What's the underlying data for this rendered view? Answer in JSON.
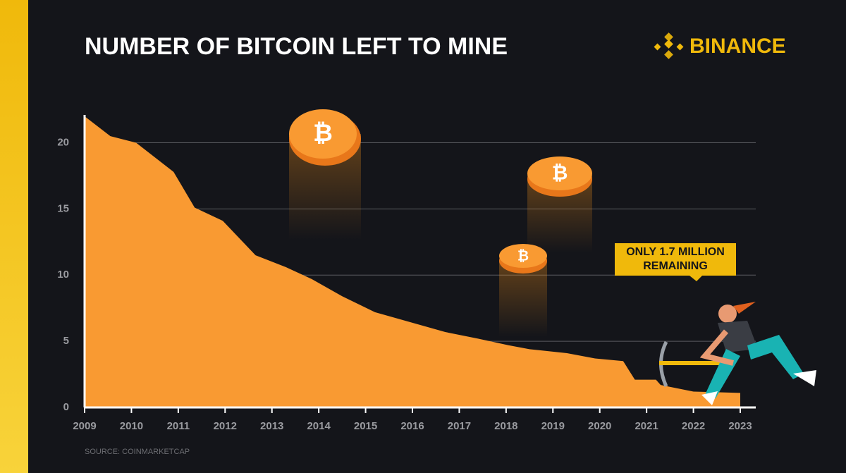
{
  "chart_data": {
    "type": "area",
    "title": "NUMBER OF BITCOIN LEFT TO MINE",
    "brand": "BINANCE",
    "source": "SOURCE: COINMARKETCAP",
    "annotation": [
      "ONLY 1.7 MILLION",
      "REMAINING"
    ],
    "x": [
      2009,
      2009.55,
      2010.1,
      2010.9,
      2011.35,
      2011.95,
      2012.65,
      2013.3,
      2013.85,
      2014.5,
      2015.2,
      2015.9,
      2016.7,
      2017.4,
      2018.05,
      2018.5,
      2019.3,
      2019.9,
      2020.5,
      2020.75,
      2021.2,
      2021.3,
      2022,
      2023
    ],
    "values": [
      22,
      20.5,
      20,
      17.8,
      15.1,
      14.1,
      11.5,
      10.6,
      9.7,
      8.4,
      7.2,
      6.5,
      5.7,
      5.2,
      4.7,
      4.4,
      4.1,
      3.7,
      3.5,
      2.1,
      2.1,
      1.7,
      1.2,
      1.1
    ],
    "color": "#f99a32",
    "xlim": [
      2009,
      2023
    ],
    "xticks": [
      2009,
      2010,
      2011,
      2012,
      2013,
      2014,
      2015,
      2016,
      2017,
      2018,
      2019,
      2020,
      2021,
      2022,
      2023
    ],
    "ylim": [
      0,
      22
    ],
    "yticks": [
      0,
      5,
      10,
      15,
      20
    ],
    "grid": true
  }
}
